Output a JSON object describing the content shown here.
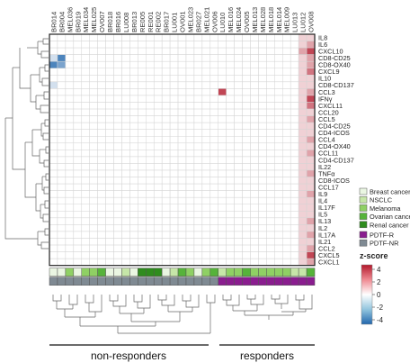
{
  "chart_data": {
    "type": "heatmap",
    "title": "",
    "columns": [
      "BR014",
      "BR004",
      "MEL036",
      "BR019",
      "MEL034",
      "MEL025",
      "OV007",
      "BR018",
      "BR016",
      "LU008",
      "BR013",
      "RE005",
      "RE001",
      "RE002",
      "BR017",
      "LU001",
      "OV001",
      "MEL023",
      "BR027",
      "MEL021",
      "OV006",
      "LU010",
      "MEL016",
      "MEL024",
      "OV005",
      "MEL013",
      "MEL028",
      "MEL018",
      "MEL014",
      "MEL009",
      "LU013",
      "LU012",
      "OV008"
    ],
    "rows": [
      "IL8",
      "IL6",
      "CXCL10",
      "CD8-CD25",
      "CD8-OX40",
      "CXCL9",
      "IL10",
      "CD8-CD137",
      "CCL3",
      "IFNγ",
      "CXCL11",
      "CCL20",
      "CCL5",
      "CD4-CD25",
      "CD4-ICOS",
      "CCL4",
      "CD4-OX40",
      "CCL11",
      "CD4-CD137",
      "IL22",
      "TNFα",
      "CD8-ICOS",
      "CCL17",
      "IL9",
      "IL4",
      "IL17F",
      "IL5",
      "IL13",
      "IL2",
      "IL17A",
      "IL21",
      "CCL2",
      "CXCL5",
      "CXCL1"
    ],
    "z_range": [
      -5,
      5
    ],
    "colorbar": {
      "title": "z-score",
      "ticks": [
        "4",
        "2",
        "0",
        "-2",
        "-4"
      ]
    },
    "values": [
      [
        0,
        0,
        0,
        0,
        0,
        0,
        0,
        0,
        0,
        0,
        0,
        0,
        0,
        0,
        0,
        0,
        0,
        0,
        0,
        0,
        0,
        0,
        0,
        0,
        0,
        0,
        0,
        0,
        0,
        0,
        0,
        1,
        1
      ],
      [
        0,
        0,
        0,
        0,
        0,
        0,
        0,
        0,
        0,
        0,
        0,
        0,
        0,
        0,
        0,
        0,
        0,
        0,
        0,
        0,
        0,
        0,
        0,
        0,
        0,
        0,
        0,
        0,
        0,
        0,
        0,
        1,
        2
      ],
      [
        0,
        0,
        0,
        0,
        0,
        0,
        0,
        0,
        0,
        0,
        0,
        0,
        0,
        0,
        0,
        0,
        0,
        0,
        0,
        0,
        0,
        0,
        0,
        0,
        0,
        0,
        0,
        0,
        0,
        0,
        0,
        2,
        4
      ],
      [
        -1,
        -4,
        0,
        0,
        0,
        0,
        0,
        0,
        0,
        0,
        0,
        0,
        0,
        0,
        0,
        0,
        0,
        0,
        0,
        0,
        0,
        0,
        0,
        0,
        0,
        0,
        0,
        0,
        0,
        0,
        0,
        1,
        2
      ],
      [
        -4,
        -3,
        0,
        0,
        0,
        0,
        0,
        0,
        0,
        0,
        0,
        0,
        0,
        0,
        0,
        0,
        0,
        0,
        0,
        0,
        0,
        0,
        0,
        0,
        0,
        0,
        0,
        0,
        0,
        0,
        0,
        1,
        2
      ],
      [
        0,
        0,
        0,
        0,
        0,
        0,
        0,
        0,
        0,
        0,
        0,
        0,
        0,
        0,
        0,
        0,
        0,
        0,
        0,
        0,
        0,
        0,
        0,
        0,
        0,
        0,
        0,
        0,
        0,
        0,
        0,
        1,
        3
      ],
      [
        0,
        0,
        0,
        0,
        0,
        0,
        0,
        0,
        0,
        0,
        0,
        0,
        0,
        0,
        0,
        0,
        0,
        0,
        0,
        0,
        0,
        0,
        0,
        0,
        0,
        0,
        0,
        0,
        0,
        0,
        0,
        1,
        1
      ],
      [
        -1,
        0,
        0,
        0,
        0,
        0,
        0,
        0,
        0,
        0,
        0,
        0,
        0,
        0,
        0,
        0,
        0,
        0,
        0,
        0,
        0,
        0,
        0,
        0,
        0,
        0,
        0,
        0,
        0,
        0,
        0,
        1,
        1
      ],
      [
        0,
        0,
        0,
        0,
        0,
        0,
        0,
        0,
        0,
        0,
        0,
        0,
        0,
        0,
        0,
        0,
        0,
        0,
        0,
        0,
        0,
        4,
        0,
        0,
        0,
        0,
        0,
        0,
        0,
        0,
        0,
        1,
        2
      ],
      [
        0,
        0,
        0,
        0,
        0,
        0,
        0,
        0,
        0,
        0,
        0,
        0,
        0,
        0,
        0,
        0,
        0,
        0,
        0,
        0,
        0,
        0,
        0,
        0,
        0,
        0,
        0,
        0,
        0,
        0,
        0,
        1,
        4
      ],
      [
        0,
        0,
        0,
        0,
        0,
        0,
        0,
        0,
        0,
        0,
        0,
        0,
        0,
        0,
        0,
        0,
        0,
        0,
        0,
        0,
        0,
        0,
        0,
        0,
        0,
        0,
        0,
        0,
        0,
        0,
        0,
        1,
        3
      ],
      [
        0,
        0,
        0,
        0,
        0,
        0,
        0,
        0,
        0,
        0,
        0,
        0,
        0,
        0,
        0,
        0,
        0,
        0,
        0,
        0,
        0,
        0,
        0,
        0,
        0,
        0,
        0,
        0,
        0,
        0,
        0,
        1,
        1
      ],
      [
        0,
        0,
        0,
        0,
        0,
        0,
        0,
        0,
        0,
        0,
        0,
        0,
        0,
        0,
        0,
        0,
        0,
        0,
        0,
        0,
        0,
        0,
        0,
        0,
        0,
        0,
        0,
        0,
        0,
        0,
        0,
        1,
        2
      ],
      [
        0,
        0,
        0,
        0,
        0,
        0,
        0,
        0,
        0,
        0,
        0,
        0,
        0,
        0,
        0,
        0,
        0,
        0,
        0,
        0,
        0,
        0,
        0,
        0,
        0,
        0,
        0,
        0,
        0,
        0,
        0,
        1,
        1
      ],
      [
        0,
        0,
        0,
        0,
        0,
        0,
        0,
        0,
        0,
        0,
        0,
        0,
        0,
        0,
        0,
        0,
        0,
        0,
        0,
        0,
        0,
        0,
        0,
        0,
        0,
        0,
        0,
        0,
        0,
        0,
        0,
        1,
        1
      ],
      [
        0,
        0,
        0,
        0,
        0,
        0,
        0,
        0,
        0,
        0,
        0,
        0,
        0,
        0,
        0,
        0,
        0,
        0,
        0,
        0,
        0,
        0,
        0,
        0,
        0,
        0,
        0,
        0,
        0,
        0,
        0,
        1,
        2
      ],
      [
        0,
        0,
        0,
        0,
        0,
        0,
        0,
        0,
        0,
        0,
        0,
        0,
        0,
        0,
        0,
        0,
        0,
        0,
        0,
        0,
        0,
        0,
        0,
        0,
        0,
        0,
        0,
        0,
        0,
        0,
        0,
        1,
        1
      ],
      [
        0,
        0,
        0,
        0,
        0,
        0,
        0,
        0,
        0,
        0,
        0,
        0,
        0,
        0,
        0,
        0,
        0,
        0,
        0,
        0,
        0,
        0,
        0,
        0,
        0,
        0,
        0,
        0,
        0,
        0,
        0,
        1,
        2
      ],
      [
        0,
        0,
        0,
        0,
        0,
        0,
        0,
        0,
        0,
        0,
        0,
        0,
        0,
        0,
        0,
        0,
        0,
        0,
        0,
        0,
        0,
        0,
        0,
        0,
        0,
        0,
        0,
        0,
        0,
        0,
        0,
        1,
        1
      ],
      [
        0,
        0,
        0,
        0,
        0,
        0,
        0,
        0,
        0,
        0,
        0,
        0,
        0,
        0,
        0,
        0,
        0,
        0,
        0,
        0,
        0,
        0,
        0,
        0,
        0,
        0,
        0,
        0,
        0,
        0,
        0,
        1,
        1
      ],
      [
        0,
        0,
        0,
        0,
        0,
        0,
        0,
        0,
        0,
        0,
        0,
        0,
        0,
        0,
        0,
        0,
        0,
        0,
        0,
        0,
        0,
        0,
        0,
        0,
        0,
        0,
        0,
        0,
        0,
        0,
        0,
        1,
        2
      ],
      [
        0,
        0,
        0,
        0,
        0,
        0,
        0,
        0,
        0,
        0,
        0,
        0,
        0,
        0,
        0,
        0,
        0,
        0,
        0,
        0,
        0,
        0,
        0,
        0,
        0,
        0,
        0,
        0,
        0,
        0,
        0,
        1,
        1
      ],
      [
        0,
        0,
        0,
        0,
        0,
        0,
        0,
        0,
        0,
        0,
        0,
        0,
        0,
        0,
        0,
        0,
        0,
        0,
        0,
        0,
        0,
        0,
        0,
        0,
        0,
        0,
        0,
        0,
        0,
        0,
        0,
        1,
        1
      ],
      [
        0,
        0,
        0,
        0,
        0,
        0,
        0,
        0,
        0,
        0,
        0,
        0,
        0,
        0,
        0,
        0,
        0,
        0,
        0,
        0,
        0,
        0,
        0,
        0,
        0,
        0,
        0,
        0,
        0,
        0,
        0,
        1,
        2
      ],
      [
        0,
        0,
        0,
        0,
        0,
        0,
        0,
        0,
        0,
        0,
        0,
        0,
        0,
        0,
        0,
        0,
        0,
        0,
        0,
        0,
        0,
        0,
        0,
        0,
        0,
        0,
        0,
        0,
        0,
        0,
        0,
        1,
        1
      ],
      [
        0,
        0,
        0,
        0,
        0,
        0,
        0,
        0,
        0,
        0,
        0,
        0,
        0,
        0,
        0,
        0,
        0,
        0,
        0,
        0,
        0,
        0,
        0,
        0,
        0,
        0,
        0,
        0,
        0,
        0,
        0,
        1,
        1
      ],
      [
        0,
        0,
        0,
        0,
        0,
        0,
        0,
        0,
        0,
        0,
        0,
        0,
        0,
        0,
        0,
        0,
        0,
        0,
        0,
        0,
        0,
        0,
        0,
        0,
        0,
        0,
        0,
        0,
        0,
        0,
        0,
        1,
        1
      ],
      [
        0,
        0,
        0,
        0,
        0,
        0,
        0,
        0,
        0,
        0,
        0,
        0,
        0,
        0,
        0,
        0,
        0,
        0,
        0,
        0,
        0,
        0,
        0,
        0,
        0,
        0,
        0,
        0,
        0,
        0,
        0,
        1,
        2
      ],
      [
        0,
        0,
        0,
        0,
        0,
        0,
        0,
        0,
        0,
        0,
        0,
        0,
        0,
        0,
        0,
        0,
        0,
        0,
        0,
        0,
        0,
        0,
        0,
        0,
        0,
        0,
        0,
        0,
        0,
        0,
        0,
        1,
        1
      ],
      [
        0,
        0,
        0,
        0,
        0,
        0,
        0,
        0,
        0,
        0,
        0,
        0,
        0,
        0,
        0,
        0,
        0,
        0,
        0,
        0,
        0,
        0,
        0,
        0,
        0,
        0,
        0,
        0,
        0,
        0,
        0,
        1,
        2
      ],
      [
        0,
        0,
        0,
        0,
        0,
        0,
        0,
        0,
        0,
        0,
        0,
        0,
        0,
        0,
        0,
        0,
        0,
        0,
        0,
        0,
        0,
        0,
        0,
        0,
        0,
        0,
        0,
        0,
        0,
        0,
        0,
        1,
        1
      ],
      [
        0,
        0,
        0,
        0,
        0,
        0,
        0,
        0,
        0,
        0,
        0,
        0,
        0,
        0,
        0,
        0,
        0,
        0,
        0,
        0,
        0,
        0,
        0,
        0,
        0,
        0,
        0,
        0,
        0,
        0,
        0,
        1,
        2
      ],
      [
        0,
        0,
        0,
        0,
        0,
        0,
        0,
        0,
        0,
        0,
        0,
        0,
        0,
        0,
        0,
        0,
        0,
        0,
        0,
        0,
        0,
        0,
        0,
        0,
        0,
        0,
        0,
        0,
        0,
        0,
        0,
        1,
        4
      ],
      [
        0,
        0,
        0,
        0,
        0,
        0,
        0,
        0,
        0,
        0,
        0,
        0,
        0,
        0,
        0,
        0,
        0,
        0,
        0,
        0,
        0,
        0,
        0,
        0,
        0,
        0,
        0,
        0,
        0,
        0,
        0,
        1,
        2
      ]
    ],
    "cancer_type_row": [
      0,
      0,
      2,
      0,
      2,
      2,
      3,
      0,
      0,
      1,
      0,
      4,
      4,
      4,
      0,
      1,
      3,
      2,
      0,
      2,
      3,
      1,
      2,
      2,
      3,
      2,
      2,
      2,
      2,
      2,
      1,
      1,
      3
    ],
    "response_row": [
      0,
      0,
      0,
      0,
      0,
      0,
      0,
      0,
      0,
      0,
      0,
      0,
      0,
      0,
      0,
      0,
      0,
      0,
      0,
      0,
      0,
      1,
      1,
      1,
      1,
      1,
      1,
      1,
      1,
      1,
      1,
      1,
      1
    ],
    "legend_cancer": [
      {
        "label": "Breast cancer",
        "color": "#eaf6e2"
      },
      {
        "label": "NSCLC",
        "color": "#c6e6a8"
      },
      {
        "label": "Melanoma",
        "color": "#8fd064"
      },
      {
        "label": "Ovarian cancer",
        "color": "#56b33a"
      },
      {
        "label": "Renal cancer",
        "color": "#2f8c1e"
      }
    ],
    "legend_response": [
      {
        "label": "PDTF-R",
        "color": "#8a1d8f"
      },
      {
        "label": "PDTF-NR",
        "color": "#7f8a93"
      }
    ],
    "group_labels": {
      "left": "non-responders",
      "right": "responders"
    }
  }
}
